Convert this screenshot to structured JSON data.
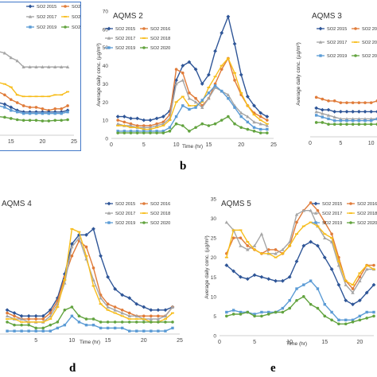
{
  "colors": {
    "SO2 2015": "#2e5597",
    "SO2 2016": "#e07b39",
    "SO2 2017": "#a5a5a5",
    "SO2 2018": "#f7bd1c",
    "SO2 2019": "#5b9bd5",
    "SO2 2020": "#62a33f",
    "frame_blue": "#4a7ecb"
  },
  "letters": {
    "b": "b",
    "d": "d",
    "e": "e"
  },
  "chart_data": [
    {
      "id": "panel-aqms1",
      "type": "line",
      "title": "",
      "xlabel": "",
      "ylabel": "",
      "x_ticks": [
        "15",
        "20",
        "25"
      ],
      "xlim": [
        12.5,
        25
      ],
      "ylim": [
        0,
        40
      ],
      "legend": [
        "SO2 2015",
        "SO2 2016",
        "SO2 2017",
        "SO2 2018",
        "SO2 2019",
        "SO2 2020"
      ],
      "legend_position": "top-right",
      "x": [
        13,
        14,
        15,
        16,
        17,
        18,
        19,
        20,
        21,
        22,
        23,
        24
      ],
      "series": [
        {
          "name": "SO2 2017",
          "values": [
            27,
            26.5,
            25,
            24,
            22,
            22,
            22,
            22,
            22,
            22,
            22,
            22
          ]
        },
        {
          "name": "SO2 2018",
          "values": [
            17,
            16.5,
            15.5,
            13,
            12.5,
            12.5,
            12.5,
            12.5,
            12.5,
            13,
            13,
            14
          ]
        },
        {
          "name": "SO2 2016",
          "values": [
            14,
            13,
            11.5,
            10.5,
            9.5,
            9,
            9,
            8.5,
            8,
            8.5,
            8.5,
            9.5
          ]
        },
        {
          "name": "SO2 2015",
          "values": [
            10.5,
            10,
            9,
            8,
            7.5,
            7.5,
            7.5,
            7.5,
            7.5,
            7.5,
            7.5,
            8
          ]
        },
        {
          "name": "SO2 2019",
          "values": [
            9.5,
            9,
            8,
            7.5,
            7,
            7,
            7,
            7,
            7,
            7,
            7,
            7.5
          ]
        },
        {
          "name": "SO2 2020",
          "values": [
            6,
            5.8,
            5.4,
            5,
            4.8,
            4.8,
            4.8,
            4.6,
            4.6,
            4.8,
            4.8,
            5
          ]
        }
      ]
    },
    {
      "id": "panel-aqms2",
      "type": "line",
      "title": "AQMS 2",
      "xlabel": "Time (hr)",
      "ylabel": "Average daily conc. (µg/m³)",
      "x_ticks": [
        "0",
        "5",
        "10",
        "15",
        "20",
        "25"
      ],
      "xlim": [
        0,
        25
      ],
      "ylim": [
        0,
        70
      ],
      "legend": [
        "SO2 2015",
        "SO2 2016",
        "SO2 2017",
        "SO2 2018",
        "SO2 2019",
        "SO2 2020"
      ],
      "legend_position": "top-left",
      "x": [
        1,
        2,
        3,
        4,
        5,
        6,
        7,
        8,
        9,
        10,
        11,
        12,
        13,
        14,
        15,
        16,
        17,
        18,
        19,
        20,
        21,
        22,
        23,
        24
      ],
      "series": [
        {
          "name": "SO2 2015",
          "values": [
            12,
            12,
            11,
            11,
            10,
            10,
            11,
            12,
            15,
            32,
            40,
            42,
            38,
            30,
            35,
            48,
            58,
            67,
            52,
            35,
            23,
            18,
            14,
            12
          ]
        },
        {
          "name": "SO2 2016",
          "values": [
            10,
            9,
            8,
            7,
            7,
            7,
            8,
            9,
            13,
            38,
            36,
            25,
            22,
            18,
            22,
            30,
            38,
            44,
            32,
            24,
            18,
            14,
            12,
            10
          ]
        },
        {
          "name": "SO2 2017",
          "values": [
            8,
            7,
            7,
            6,
            6,
            6,
            7,
            8,
            11,
            30,
            32,
            22,
            20,
            17,
            22,
            28,
            26,
            24,
            18,
            14,
            12,
            9,
            8,
            7
          ]
        },
        {
          "name": "SO2 2018",
          "values": [
            7,
            7,
            6,
            6,
            5,
            5,
            6,
            7,
            10,
            20,
            23,
            18,
            18,
            20,
            28,
            34,
            40,
            44,
            36,
            25,
            18,
            13,
            10,
            8
          ]
        },
        {
          "name": "SO2 2019",
          "values": [
            4,
            4,
            4,
            4,
            4,
            4,
            4,
            4,
            6,
            12,
            18,
            16,
            17,
            21,
            25,
            29,
            26,
            22,
            17,
            12,
            9,
            6,
            5,
            5
          ]
        },
        {
          "name": "SO2 2020",
          "values": [
            3,
            3,
            3,
            3,
            3,
            3,
            3,
            3,
            4,
            8,
            7,
            4,
            6,
            8,
            7,
            8,
            10,
            12,
            8,
            6,
            5,
            4,
            3,
            3
          ]
        }
      ]
    },
    {
      "id": "panel-aqms3",
      "type": "line",
      "title": "AQMS 3",
      "xlabel": "",
      "ylabel": "Average daily conc. (µg/m³)",
      "x_ticks": [
        "0",
        "5",
        "10"
      ],
      "xlim": [
        0,
        12
      ],
      "ylim": [
        0,
        35
      ],
      "legend": [
        "SO2 2015",
        "SO2 2016",
        "SO2 2017",
        "SO2 2018",
        "SO2 2019",
        "SO2 2020"
      ],
      "legend_position": "top-right",
      "x": [
        1,
        2,
        3,
        4,
        5,
        6,
        7,
        8,
        9,
        10,
        11,
        12
      ],
      "series": [
        {
          "name": "SO2 2016",
          "values": [
            11,
            10.5,
            10,
            10,
            9.5,
            9.5,
            9.5,
            9.5,
            9.5,
            9.5,
            10,
            10
          ]
        },
        {
          "name": "SO2 2017",
          "values": [
            7,
            6.5,
            6,
            5.5,
            5,
            5,
            5,
            5,
            5,
            5,
            5,
            5
          ]
        },
        {
          "name": "SO2 2015",
          "values": [
            8,
            7.5,
            7.5,
            7,
            7,
            7,
            7,
            7,
            7,
            7,
            7,
            7
          ]
        },
        {
          "name": "SO2 2019",
          "values": [
            6,
            5.5,
            5,
            4.5,
            4.5,
            4.5,
            4.5,
            4.5,
            4.5,
            4.5,
            5,
            5
          ]
        },
        {
          "name": "SO2 2020",
          "values": [
            4,
            4,
            3.5,
            3.5,
            3.5,
            3.5,
            3.5,
            3.5,
            3.5,
            3.5,
            3.5,
            3.5
          ]
        }
      ]
    },
    {
      "id": "panel-aqms4",
      "type": "line",
      "title": "AQMS 4",
      "xlabel": "Time (hr)",
      "ylabel": "",
      "x_ticks": [
        "5",
        "10",
        "15",
        "20",
        "25"
      ],
      "xlim": [
        0,
        25
      ],
      "ylim": [
        0,
        45
      ],
      "legend": [
        "SO2 2015",
        "SO2 2016",
        "SO2 2017",
        "SO2 2018",
        "SO2 2019",
        "SO2 2020"
      ],
      "legend_position": "top-right",
      "x": [
        1,
        2,
        3,
        4,
        5,
        6,
        7,
        8,
        9,
        10,
        11,
        12,
        13,
        14,
        15,
        16,
        17,
        18,
        19,
        20,
        21,
        22,
        23,
        24
      ],
      "series": [
        {
          "name": "SO2 2015",
          "values": [
            8,
            7,
            6,
            6,
            6,
            6,
            8,
            12,
            20,
            30,
            33,
            33,
            35,
            26,
            19,
            15,
            13,
            12,
            10,
            9,
            8,
            8,
            8,
            9
          ]
        },
        {
          "name": "SO2 2016",
          "values": [
            7,
            6,
            5,
            5,
            5,
            5,
            7,
            11,
            19,
            26,
            31,
            29,
            22,
            13,
            10,
            9,
            8,
            7,
            6,
            6,
            6,
            6,
            6,
            9
          ]
        },
        {
          "name": "SO2 2017",
          "values": [
            6,
            5,
            5,
            4,
            4,
            4,
            6,
            10,
            17,
            29,
            32,
            25,
            18,
            12,
            9,
            8,
            7,
            6,
            6,
            5,
            5,
            5,
            6,
            9
          ]
        },
        {
          "name": "SO2 2018",
          "values": [
            5,
            5,
            4,
            4,
            4,
            4,
            5,
            9,
            18,
            35,
            34,
            26,
            16,
            10,
            8,
            7,
            6,
            5,
            5,
            5,
            4,
            4,
            5,
            7
          ]
        },
        {
          "name": "SO2 2019",
          "values": [
            1,
            1,
            1,
            1,
            1,
            1,
            1,
            2,
            3,
            6,
            4,
            3,
            3,
            2,
            2,
            2,
            2,
            1,
            1,
            1,
            1,
            1,
            1,
            2
          ]
        },
        {
          "name": "SO2 2020",
          "values": [
            4,
            3,
            3,
            3,
            2,
            2,
            3,
            4,
            8,
            9,
            6,
            5,
            5,
            4,
            4,
            4,
            4,
            4,
            4,
            4,
            4,
            4,
            4,
            4
          ]
        }
      ]
    },
    {
      "id": "panel-aqms5",
      "type": "line",
      "title": "AQMS 5",
      "xlabel": "Time (hr)",
      "ylabel": "Average daily conc. (µg/m³)",
      "x_ticks": [
        "0",
        "5",
        "10",
        "15",
        "20"
      ],
      "xlim": [
        0,
        22
      ],
      "ylim": [
        0,
        35
      ],
      "y_ticks": [
        "0",
        "5",
        "10",
        "15",
        "20",
        "25",
        "30",
        "35"
      ],
      "legend": [
        "SO2 2015",
        "SO2 2016",
        "SO2 2017",
        "SO2 2018",
        "SO2 2019",
        "SO2 2020"
      ],
      "legend_position": "top-right",
      "x": [
        1,
        2,
        3,
        4,
        5,
        6,
        7,
        8,
        9,
        10,
        11,
        12,
        13,
        14,
        15,
        16,
        17,
        18,
        19,
        20,
        21,
        22
      ],
      "series": [
        {
          "name": "SO2 2015",
          "values": [
            18,
            16.5,
            15,
            14.5,
            15.5,
            15,
            14.5,
            14,
            14,
            15,
            19,
            23,
            24,
            23,
            20,
            17,
            13,
            9,
            8,
            9,
            11,
            13
          ]
        },
        {
          "name": "SO2 2016",
          "values": [
            21,
            25,
            25,
            23,
            22,
            21,
            22,
            22,
            21,
            23,
            29,
            32,
            34,
            32,
            29,
            26,
            20,
            14,
            12,
            15,
            18,
            18
          ]
        },
        {
          "name": "SO2 2017",
          "values": [
            29,
            27,
            23,
            22,
            23,
            26,
            21,
            21,
            22,
            24,
            31,
            32,
            32,
            28,
            25,
            24,
            18,
            13,
            11,
            14,
            17,
            17
          ]
        },
        {
          "name": "SO2 2018",
          "values": [
            20,
            27,
            27,
            24,
            22,
            21,
            21,
            20,
            21,
            23,
            26,
            28,
            29,
            28,
            26,
            25,
            19,
            14,
            13,
            16,
            18,
            17
          ]
        },
        {
          "name": "SO2 2019",
          "values": [
            6,
            6.5,
            6,
            6,
            5.5,
            6,
            6,
            6,
            7,
            9,
            12,
            13,
            14,
            12,
            8,
            6,
            4,
            4,
            4,
            5,
            6,
            6
          ]
        },
        {
          "name": "SO2 2020",
          "values": [
            5,
            5.5,
            5.5,
            6,
            5,
            5,
            5.5,
            6,
            6,
            7,
            9,
            10,
            8,
            7,
            5,
            4,
            3,
            3,
            3.5,
            4,
            4.5,
            5
          ]
        }
      ]
    }
  ]
}
